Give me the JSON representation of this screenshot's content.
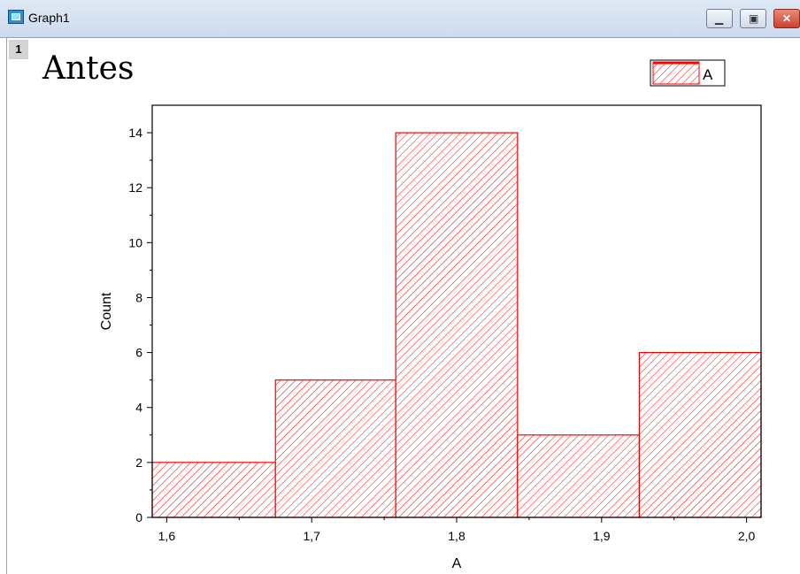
{
  "window": {
    "title": "Graph1",
    "layer_number": "1"
  },
  "chart_data": {
    "type": "bar",
    "title": "Antes",
    "xlabel": "A",
    "ylabel": "Count",
    "bins": [
      {
        "start": 1.59,
        "end": 1.675,
        "count": 2
      },
      {
        "start": 1.675,
        "end": 1.758,
        "count": 5
      },
      {
        "start": 1.758,
        "end": 1.842,
        "count": 14
      },
      {
        "start": 1.842,
        "end": 1.926,
        "count": 3
      },
      {
        "start": 1.926,
        "end": 2.01,
        "count": 6
      }
    ],
    "xlim": [
      1.59,
      2.01
    ],
    "ylim": [
      0,
      15
    ],
    "x_ticks": [
      {
        "value": 1.6,
        "label": "1,6"
      },
      {
        "value": 1.7,
        "label": "1,7"
      },
      {
        "value": 1.8,
        "label": "1,8"
      },
      {
        "value": 1.9,
        "label": "1,9"
      },
      {
        "value": 2.0,
        "label": "2,0"
      }
    ],
    "y_ticks": [
      {
        "value": 0,
        "label": "0"
      },
      {
        "value": 2,
        "label": "2"
      },
      {
        "value": 4,
        "label": "4"
      },
      {
        "value": 6,
        "label": "6"
      },
      {
        "value": 8,
        "label": "8"
      },
      {
        "value": 10,
        "label": "10"
      },
      {
        "value": 12,
        "label": "12"
      },
      {
        "value": 14,
        "label": "14"
      }
    ],
    "series": [
      {
        "name": "A",
        "color": "#ff0000",
        "fill": "diagonal-hatch"
      }
    ],
    "legend": {
      "position": "top-right",
      "label": "A"
    },
    "grid": false
  }
}
